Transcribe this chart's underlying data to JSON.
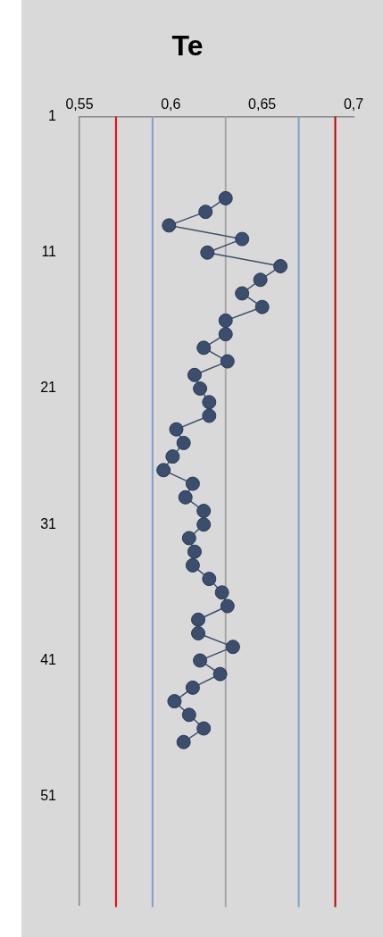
{
  "chart_data": {
    "type": "line",
    "title": "Te",
    "series": [
      {
        "color": "#3b4e6e",
        "x": [
          0.63,
          0.619,
          0.599,
          0.639,
          0.62,
          0.66,
          0.649,
          0.639,
          0.65,
          0.63,
          0.63,
          0.618,
          0.631,
          0.613,
          0.616,
          0.621,
          0.621,
          0.603,
          0.607,
          0.601,
          0.596,
          0.612,
          0.608,
          0.618,
          0.618,
          0.61,
          0.613,
          0.612,
          0.621,
          0.628,
          0.631,
          0.615,
          0.615,
          0.634,
          0.616,
          0.627,
          0.612,
          0.602,
          0.61,
          0.618,
          0.607
        ],
        "values": [
          7,
          8,
          9,
          10,
          11,
          12,
          13,
          14,
          15,
          16,
          17,
          18,
          19,
          20,
          21,
          22,
          23,
          24,
          25,
          26,
          27,
          28,
          29,
          30,
          31,
          32,
          33,
          34,
          35,
          36,
          37,
          38,
          39,
          40,
          41,
          42,
          43,
          44,
          45,
          46,
          47
        ]
      }
    ],
    "xlim": [
      0.55,
      0.7
    ],
    "xticks": [
      {
        "value": 0.55,
        "label": "0,55"
      },
      {
        "value": 0.6,
        "label": "0,6"
      },
      {
        "value": 0.65,
        "label": "0,65"
      },
      {
        "value": 0.7,
        "label": "0,7"
      }
    ],
    "ylim": [
      59,
      1
    ],
    "yticks": [
      1,
      11,
      21,
      31,
      41,
      51
    ],
    "ref_lines": [
      {
        "axis": "x",
        "value": 0.57,
        "color": "#ff0000"
      },
      {
        "axis": "x",
        "value": 0.59,
        "color": "#7f9fcc"
      },
      {
        "axis": "x",
        "value": 0.63,
        "color": "#a6a6a6"
      },
      {
        "axis": "x",
        "value": 0.67,
        "color": "#7f9fcc"
      },
      {
        "axis": "x",
        "value": 0.69,
        "color": "#c00000"
      }
    ],
    "grid": false,
    "legend": false,
    "marker": "circle",
    "line_style": "solid"
  }
}
